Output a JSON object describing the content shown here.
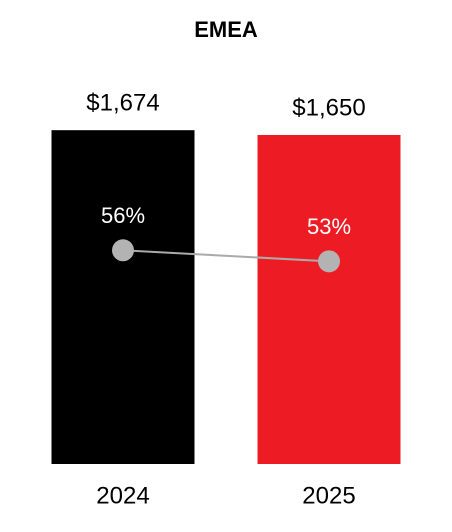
{
  "chart_data": {
    "type": "bar",
    "title": "EMEA",
    "categories": [
      "2024",
      "2025"
    ],
    "series": [
      {
        "type": "bar",
        "values": [
          1674,
          1650
        ],
        "value_labels": [
          "$1,674",
          "$1,650"
        ],
        "colors": [
          "#000000",
          "#ed1c24"
        ]
      },
      {
        "type": "line",
        "axis": "y2",
        "values": [
          56,
          53
        ],
        "value_labels": [
          "56%",
          "53%"
        ],
        "color": "#aaaaaa",
        "marker_color": "#b3b3b3",
        "label_color": "#ffffff"
      }
    ],
    "ylim": [
      0,
      1700
    ],
    "y2lim": [
      -2,
      90
    ]
  }
}
